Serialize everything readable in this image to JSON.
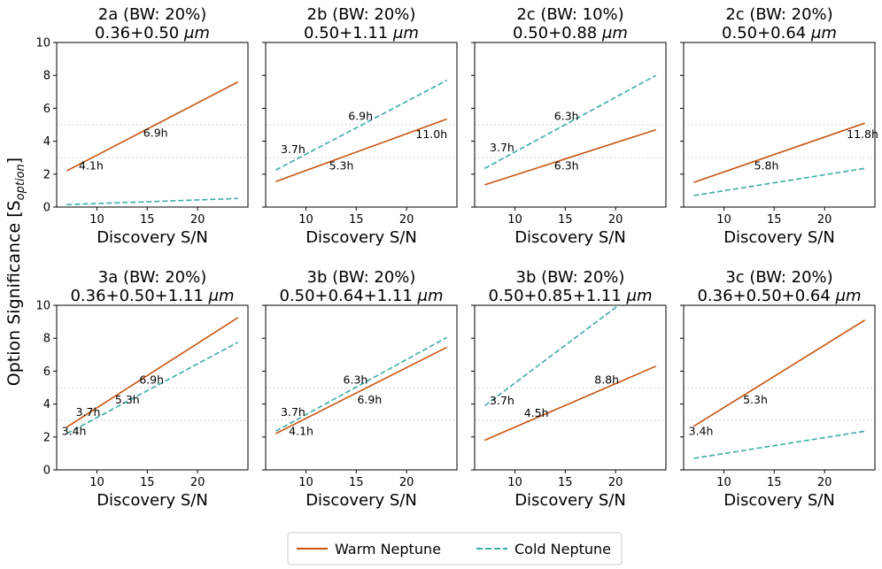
{
  "figure": {
    "ylabel_main": "Option Significance [S",
    "ylabel_sub": "option",
    "ylabel_end": "]",
    "legend": [
      {
        "label": "Warm Neptune",
        "color": "#c8530e",
        "style": "solid"
      },
      {
        "label": "Cold Neptune",
        "color": "#3aaca4",
        "style": "dashed"
      }
    ],
    "colors": {
      "warm": "#c8530e",
      "cold": "#3aaca4",
      "grid": "#cccccc"
    }
  },
  "chart_data": [
    {
      "type": "line",
      "title_line1": "2a (BW: 20%)",
      "title_line2_text": "0.36+0.50",
      "title_unit": "μm",
      "xlabel": "Discovery S/N",
      "xlim": [
        6,
        25
      ],
      "ylim": [
        0,
        10
      ],
      "xticks": [
        "10",
        "15",
        "20"
      ],
      "yticks": [
        "0",
        "2",
        "4",
        "6",
        "8",
        "10"
      ],
      "ref_lines": [
        3,
        5
      ],
      "series": [
        {
          "name": "Warm Neptune",
          "x": [
            7,
            24
          ],
          "values": [
            2.2,
            7.6
          ]
        },
        {
          "name": "Cold Neptune",
          "x": [
            7,
            24
          ],
          "values": [
            0.15,
            0.52
          ]
        }
      ],
      "annotations": [
        {
          "text": "4.1h",
          "x": 8.2,
          "y": 2.5
        },
        {
          "text": "6.9h",
          "x": 14.6,
          "y": 4.5
        }
      ]
    },
    {
      "type": "line",
      "title_line1": "2b (BW: 20%)",
      "title_line2_text": "0.50+1.11",
      "title_unit": "μm",
      "xlabel": "Discovery S/N",
      "xlim": [
        6,
        25
      ],
      "ylim": [
        0,
        10
      ],
      "xticks": [
        "10",
        "15",
        "20"
      ],
      "yticks": [],
      "ref_lines": [
        3,
        5
      ],
      "series": [
        {
          "name": "Warm Neptune",
          "x": [
            7,
            24
          ],
          "values": [
            1.55,
            5.35
          ]
        },
        {
          "name": "Cold Neptune",
          "x": [
            7,
            24
          ],
          "values": [
            2.25,
            7.7
          ]
        }
      ],
      "annotations": [
        {
          "text": "3.7h",
          "x": 7.5,
          "y": 3.5
        },
        {
          "text": "5.3h",
          "x": 12.3,
          "y": 2.5
        },
        {
          "text": "6.9h",
          "x": 14.2,
          "y": 5.5
        },
        {
          "text": "11.0h",
          "x": 20.9,
          "y": 4.4
        }
      ]
    },
    {
      "type": "line",
      "title_line1": "2c (BW: 10%)",
      "title_line2_text": "0.50+0.88",
      "title_unit": "μm",
      "xlabel": "Discovery S/N",
      "xlim": [
        6,
        25
      ],
      "ylim": [
        0,
        10
      ],
      "xticks": [
        "10",
        "15",
        "20"
      ],
      "yticks": [],
      "ref_lines": [
        3,
        5
      ],
      "series": [
        {
          "name": "Warm Neptune",
          "x": [
            7,
            24
          ],
          "values": [
            1.35,
            4.7
          ]
        },
        {
          "name": "Cold Neptune",
          "x": [
            7,
            24
          ],
          "values": [
            2.35,
            8.0
          ]
        }
      ],
      "annotations": [
        {
          "text": "3.7h",
          "x": 7.5,
          "y": 3.6
        },
        {
          "text": "6.3h",
          "x": 13.9,
          "y": 2.5
        },
        {
          "text": "6.3h",
          "x": 13.9,
          "y": 5.5
        }
      ]
    },
    {
      "type": "line",
      "title_line1": "2c (BW: 20%)",
      "title_line2_text": "0.50+0.64",
      "title_unit": "μm",
      "xlabel": "Discovery S/N",
      "xlim": [
        6,
        25
      ],
      "ylim": [
        0,
        10
      ],
      "xticks": [
        "10",
        "15",
        "20"
      ],
      "yticks": [],
      "ref_lines": [
        3,
        5
      ],
      "series": [
        {
          "name": "Warm Neptune",
          "x": [
            7,
            24
          ],
          "values": [
            1.5,
            5.1
          ]
        },
        {
          "name": "Cold Neptune",
          "x": [
            7,
            24
          ],
          "values": [
            0.7,
            2.35
          ]
        }
      ],
      "annotations": [
        {
          "text": "5.8h",
          "x": 13.0,
          "y": 2.5
        },
        {
          "text": "11.8h",
          "x": 22.2,
          "y": 4.4
        }
      ]
    },
    {
      "type": "line",
      "title_line1": "3a (BW: 20%)",
      "title_line2_text": "0.36+0.50+1.11",
      "title_unit": "μm",
      "xlabel": "Discovery S/N",
      "xlim": [
        6,
        25
      ],
      "ylim": [
        0,
        10
      ],
      "xticks": [
        "10",
        "15",
        "20"
      ],
      "yticks": [
        "0",
        "2",
        "4",
        "6",
        "8",
        "10"
      ],
      "ref_lines": [
        3,
        5
      ],
      "series": [
        {
          "name": "Warm Neptune",
          "x": [
            7,
            24
          ],
          "values": [
            2.6,
            9.25
          ]
        },
        {
          "name": "Cold Neptune",
          "x": [
            7,
            24
          ],
          "values": [
            2.2,
            7.75
          ]
        }
      ],
      "annotations": [
        {
          "text": "3.4h",
          "x": 6.5,
          "y": 2.35
        },
        {
          "text": "3.7h",
          "x": 7.9,
          "y": 3.5
        },
        {
          "text": "5.3h",
          "x": 11.8,
          "y": 4.25
        },
        {
          "text": "6.9h",
          "x": 14.2,
          "y": 5.45
        }
      ]
    },
    {
      "type": "line",
      "title_line1": "3b (BW: 20%)",
      "title_line2_text": "0.50+0.64+1.11",
      "title_unit": "μm",
      "xlabel": "Discovery S/N",
      "xlim": [
        6,
        25
      ],
      "ylim": [
        0,
        10
      ],
      "xticks": [
        "10",
        "15",
        "20"
      ],
      "yticks": [],
      "ref_lines": [
        3,
        5
      ],
      "series": [
        {
          "name": "Warm Neptune",
          "x": [
            7,
            24
          ],
          "values": [
            2.2,
            7.45
          ]
        },
        {
          "name": "Cold Neptune",
          "x": [
            7,
            24
          ],
          "values": [
            2.35,
            8.05
          ]
        }
      ],
      "annotations": [
        {
          "text": "3.7h",
          "x": 7.5,
          "y": 3.5
        },
        {
          "text": "4.1h",
          "x": 8.3,
          "y": 2.35
        },
        {
          "text": "6.3h",
          "x": 13.7,
          "y": 5.45
        },
        {
          "text": "6.9h",
          "x": 15.1,
          "y": 4.25
        }
      ]
    },
    {
      "type": "line",
      "title_line1": "3b (BW: 20%)",
      "title_line2_text": "0.50+0.85+1.11",
      "title_unit": "μm",
      "xlabel": "Discovery S/N",
      "xlim": [
        6,
        25
      ],
      "ylim": [
        0,
        10
      ],
      "xticks": [
        "10",
        "15",
        "20"
      ],
      "yticks": [],
      "ref_lines": [
        3,
        5
      ],
      "series": [
        {
          "name": "Warm Neptune",
          "x": [
            7,
            24
          ],
          "values": [
            1.8,
            6.3
          ]
        },
        {
          "name": "Cold Neptune",
          "x": [
            7,
            20.3
          ],
          "values": [
            3.9,
            10
          ]
        }
      ],
      "annotations": [
        {
          "text": "3.7h",
          "x": 7.5,
          "y": 4.2
        },
        {
          "text": "4.5h",
          "x": 10.9,
          "y": 3.45
        },
        {
          "text": "8.8h",
          "x": 17.9,
          "y": 5.45
        }
      ]
    },
    {
      "type": "line",
      "title_line1": "3c (BW: 20%)",
      "title_line2_text": "0.36+0.50+0.64",
      "title_unit": "μm",
      "xlabel": "Discovery S/N",
      "xlim": [
        6,
        25
      ],
      "ylim": [
        0,
        10
      ],
      "xticks": [
        "10",
        "15",
        "20"
      ],
      "yticks": [],
      "ref_lines": [
        3,
        5
      ],
      "series": [
        {
          "name": "Warm Neptune",
          "x": [
            7,
            24
          ],
          "values": [
            2.65,
            9.1
          ]
        },
        {
          "name": "Cold Neptune",
          "x": [
            7,
            24
          ],
          "values": [
            0.7,
            2.35
          ]
        }
      ],
      "annotations": [
        {
          "text": "3.4h",
          "x": 6.5,
          "y": 2.35
        },
        {
          "text": "5.3h",
          "x": 11.9,
          "y": 4.25
        }
      ]
    }
  ]
}
